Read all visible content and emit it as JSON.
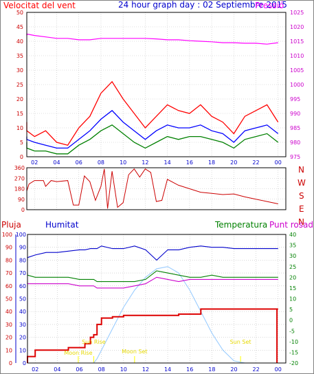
{
  "header": {
    "wind_label": "Velocitat del vent",
    "title": "24 hour graph day : 02 Septiembre 2015",
    "pressure_label": "Pressió"
  },
  "direction_letters": [
    "N",
    "W",
    "S",
    "E",
    "N"
  ],
  "lower_labels": {
    "rain": "Pluja",
    "humidity": "Humitat",
    "temperature": "Temperatura",
    "dewpoint": "Punt rosada"
  },
  "astro_labels": {
    "sunrise": "Sun Rise",
    "moonrise": "Moon Rise",
    "moonset": "Moon Set",
    "sunset": "Sun Set"
  },
  "colors": {
    "frame": "#000000",
    "grid": "#c0c0c0",
    "wind_gust": "#ff0000",
    "wind_avg": "#0000ff",
    "wind_low": "#008000",
    "pressure": "#ff00ff",
    "direction": "#cc0000",
    "rain": "#dd0000",
    "humidity": "#0000cc",
    "temperature": "#008000",
    "dewpoint": "#cc00cc",
    "sun": "#99ccff",
    "astro": "#ffff00"
  },
  "chart_data": [
    {
      "type": "line",
      "title": "",
      "x_ticks": [
        "02",
        "04",
        "06",
        "08",
        "10",
        "12",
        "14",
        "16",
        "18",
        "20",
        "22",
        "00"
      ],
      "left_axis": {
        "label": "Velocitat del vent",
        "ticks": [
          0,
          5,
          10,
          15,
          20,
          25,
          30,
          35,
          40,
          45,
          50
        ],
        "lim": [
          0,
          50
        ]
      },
      "right_axis": {
        "label": "Pressió",
        "ticks": [
          975,
          980,
          985,
          990,
          995,
          1000,
          1005,
          1010,
          1015,
          1020,
          1025
        ],
        "lim": [
          975,
          1025
        ]
      },
      "x_hours": [
        0,
        1,
        2,
        3,
        4,
        5,
        6,
        7,
        8,
        9,
        10,
        11,
        12,
        13,
        14,
        15,
        16,
        17,
        18,
        19,
        20,
        21,
        22,
        23,
        24
      ],
      "series": [
        {
          "name": "",
          "role": "gust",
          "values": [
            12,
            9,
            7,
            9,
            5,
            4,
            10,
            14,
            22,
            26,
            20,
            15,
            10,
            14,
            18,
            16,
            15,
            18,
            14,
            12,
            8,
            14,
            16,
            18,
            12
          ]
        },
        {
          "name": "",
          "role": "average",
          "values": [
            7,
            6,
            5,
            4,
            3,
            3,
            6,
            9,
            13,
            16,
            12,
            9,
            6,
            9,
            11,
            10,
            10,
            11,
            9,
            8,
            5,
            9,
            10,
            11,
            8
          ]
        },
        {
          "name": "",
          "role": "low",
          "values": [
            5,
            3,
            2,
            2,
            1,
            1,
            4,
            6,
            9,
            11,
            8,
            5,
            3,
            5,
            7,
            6,
            7,
            7,
            6,
            5,
            3,
            6,
            7,
            8,
            5
          ]
        },
        {
          "name": "Pressió",
          "role": "pressure",
          "axis": "right",
          "values": [
            1017,
            1017.5,
            1017,
            1016.5,
            1016,
            1016,
            1015.5,
            1015.5,
            1016,
            1016,
            1016,
            1016,
            1016,
            1015.8,
            1015.5,
            1015.5,
            1015.2,
            1015,
            1014.8,
            1014.5,
            1014.5,
            1014.3,
            1014.3,
            1014,
            1014.5
          ]
        }
      ]
    },
    {
      "type": "line",
      "title": "",
      "y_ticks": [
        0,
        90,
        180,
        270,
        360
      ],
      "ylim": [
        0,
        360
      ],
      "right_letters": [
        "N",
        "W",
        "S",
        "E",
        "N"
      ],
      "x_hours": [
        0,
        1,
        1.5,
        2,
        2.8,
        3,
        3.5,
        4,
        5,
        5.5,
        6,
        6.5,
        7,
        7.5,
        8,
        8.3,
        8.6,
        9,
        9.5,
        10,
        10.5,
        11,
        11.5,
        12,
        12.5,
        13,
        13.5,
        14,
        15,
        16,
        17,
        18,
        19,
        20,
        21,
        22,
        23,
        24
      ],
      "series": [
        {
          "name": "",
          "role": "direction",
          "values": [
            150,
            160,
            220,
            250,
            250,
            200,
            250,
            240,
            250,
            40,
            40,
            290,
            240,
            80,
            200,
            350,
            10,
            330,
            20,
            60,
            300,
            350,
            280,
            350,
            320,
            70,
            80,
            260,
            210,
            180,
            150,
            140,
            130,
            135,
            110,
            90,
            70,
            50
          ]
        }
      ]
    },
    {
      "type": "line",
      "title": "",
      "x_ticks": [
        "02",
        "04",
        "06",
        "08",
        "10",
        "12",
        "14",
        "16",
        "18",
        "20",
        "22",
        "00"
      ],
      "left_axis_outer": {
        "label": "Pluja",
        "ticks": [
          0,
          10,
          20,
          30,
          40,
          50,
          60,
          70,
          80,
          90,
          100
        ],
        "lim": [
          0,
          100
        ]
      },
      "left_axis_inner": {
        "label": "Humitat",
        "ticks": [
          0,
          10,
          20,
          30,
          40,
          50,
          60,
          70,
          80,
          90,
          100
        ],
        "lim": [
          0,
          100
        ]
      },
      "right_axis": {
        "label": "Temperatura",
        "ticks": [
          -20,
          -15,
          -10,
          -5,
          0,
          5,
          10,
          15,
          20,
          25,
          30,
          35,
          40
        ],
        "lim": [
          -20,
          40
        ]
      },
      "astro_markers": {
        "sunrise_hour": 7.3,
        "moonrise_hour": 5.9,
        "moonset_hour": 11.0,
        "sunset_hour": 20.6
      },
      "x_hours": [
        0,
        1,
        2,
        3,
        4,
        5,
        6,
        6.5,
        7,
        7.3,
        7.6,
        8,
        9,
        10,
        11,
        12,
        13,
        14,
        15,
        16,
        17,
        18,
        19,
        20,
        21,
        22,
        23,
        24
      ],
      "series": [
        {
          "name": "Pluja",
          "role": "rain",
          "axis": "left_outer",
          "values": [
            0,
            5,
            10,
            10,
            10,
            12,
            12,
            15,
            20,
            22,
            30,
            35,
            36,
            37,
            37,
            37,
            37,
            37,
            38,
            38,
            42,
            42,
            42,
            42,
            42,
            42,
            42,
            42
          ]
        },
        {
          "name": "Humitat",
          "role": "humidity",
          "axis": "left_inner",
          "values": [
            80,
            82,
            84,
            86,
            86,
            87,
            88,
            88,
            89,
            89,
            89,
            91,
            89,
            89,
            91,
            88,
            80,
            88,
            88,
            90,
            91,
            90,
            90,
            89,
            89,
            89,
            89,
            89
          ]
        },
        {
          "name": "Temperatura",
          "role": "temperature",
          "axis": "right",
          "values": [
            22,
            21,
            20,
            20,
            20,
            20,
            19,
            19,
            19,
            19,
            18,
            18,
            18,
            18,
            18,
            19,
            23,
            22,
            21,
            20,
            20,
            21,
            20,
            20,
            20,
            20,
            20,
            20
          ]
        },
        {
          "name": "Punt rosada",
          "role": "dewpoint",
          "axis": "right",
          "values": [
            18,
            17,
            17,
            17,
            17,
            17,
            16,
            16,
            16,
            16,
            15,
            15,
            15,
            15,
            16,
            17,
            20,
            19,
            18,
            19,
            19,
            19,
            19,
            19,
            19,
            19,
            19,
            19
          ]
        },
        {
          "name": "",
          "role": "sun",
          "axis": "right",
          "values": [
            -20,
            -20,
            -20,
            -20,
            -20,
            -20,
            -20,
            -20,
            -20,
            -20,
            -18,
            -14,
            -4,
            6,
            14,
            20,
            24,
            25,
            22,
            14,
            4,
            -6,
            -14,
            -19,
            -20,
            -20,
            -20,
            -20
          ]
        }
      ]
    }
  ]
}
